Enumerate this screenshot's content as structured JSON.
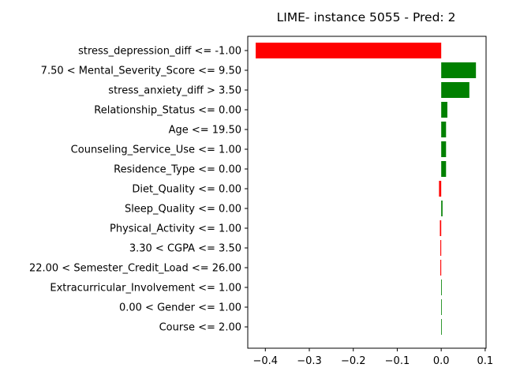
{
  "chart_data": {
    "type": "bar",
    "orientation": "horizontal",
    "title": "LIME- instance 5055 - Pred: 2",
    "xlabel": "",
    "ylabel": "",
    "xlim": [
      -0.44,
      0.102
    ],
    "xticks": [
      -0.4,
      -0.3,
      -0.2,
      -0.1,
      0.0,
      0.1
    ],
    "xtick_labels": [
      "−0.4",
      "−0.3",
      "−0.2",
      "−0.1",
      "0.0",
      "0.1"
    ],
    "positive_color": "#008000",
    "negative_color": "#ff0000",
    "grid": false,
    "categories": [
      "stress_depression_diff <= -1.00",
      "7.50 < Mental_Severity_Score <= 9.50",
      "stress_anxiety_diff > 3.50",
      "Relationship_Status <= 0.00",
      "Age <= 19.50",
      "Counseling_Service_Use <= 1.00",
      "Residence_Type <= 0.00",
      "Diet_Quality <= 0.00",
      "Sleep_Quality <= 0.00",
      "Physical_Activity <= 1.00",
      "3.30 < CGPA <= 3.50",
      "22.00 < Semester_Credit_Load <= 26.00",
      "Extracurricular_Involvement <= 1.00",
      "0.00 < Gender <= 1.00",
      "Course <= 2.00"
    ],
    "values": [
      -0.422,
      0.079,
      0.064,
      0.014,
      0.011,
      0.011,
      0.011,
      -0.005,
      0.003,
      -0.003,
      -0.002,
      -0.002,
      0.0015,
      0.0012,
      0.0012
    ]
  }
}
